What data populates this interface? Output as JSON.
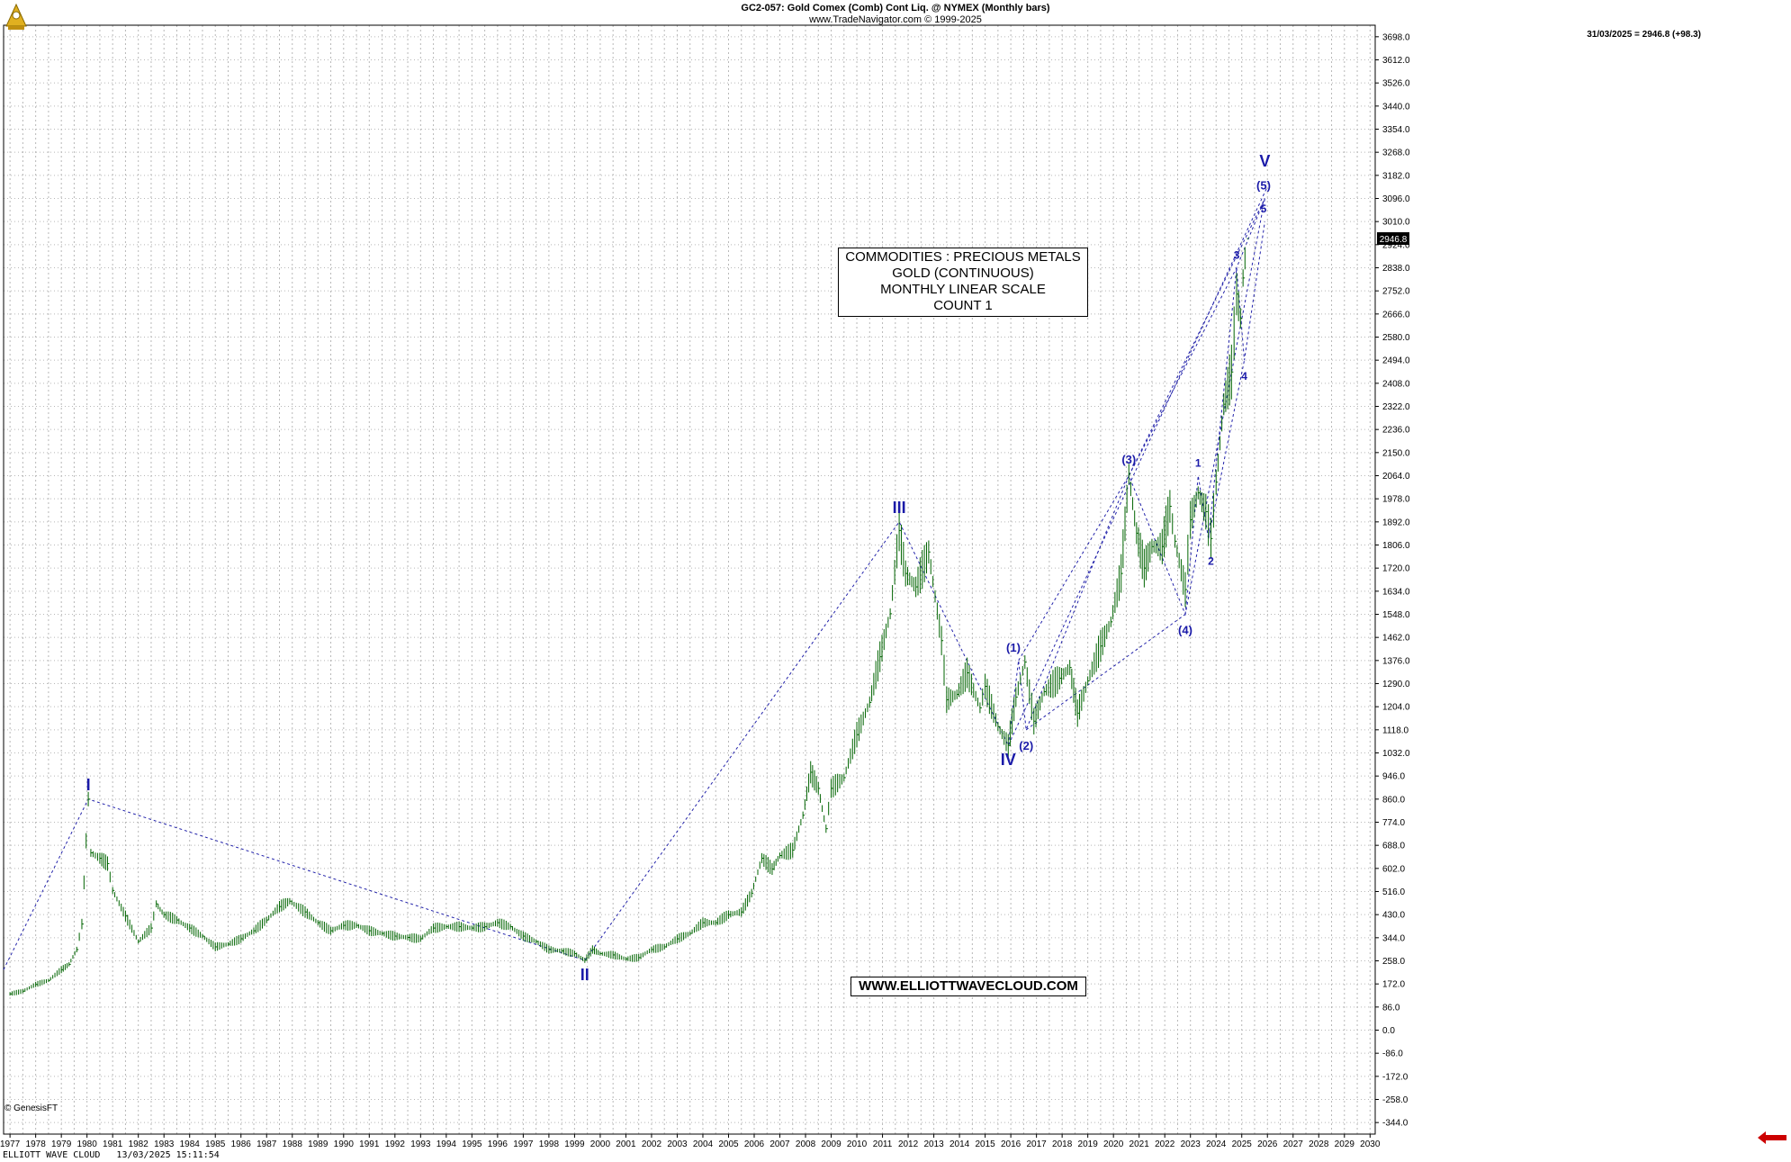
{
  "header": {
    "title": "GC2-057:  Gold Comex (Comb) Cont Liq. @ NYMEX  (Monthly bars)",
    "subtitle": "www.TradeNavigator.com © 1999-2025"
  },
  "last_readout": "31/03/2025 = 2946.8 (+98.3)",
  "price_badge": "2946.8",
  "info_box": {
    "line1": "COMMODITIES : PRECIOUS METALS",
    "line2": "GOLD (CONTINUOUS)",
    "line3": "MONTHLY LINEAR SCALE",
    "line4": "COUNT 1"
  },
  "website": "WWW.ELLIOTTWAVECLOUD.COM",
  "genesis_label": "© GenesisFT",
  "footer": "ELLIOTT WAVE CLOUD   13/03/2025 15:11:54",
  "colors": {
    "background": "#ffffff",
    "bars": "#006400",
    "wave_labels": "#1a1aa8",
    "trend_lines": "#2222aa",
    "grid": "#b8b8b8",
    "arrow": "#cc0000"
  },
  "chart_data": {
    "type": "line",
    "title": "GC2-057:  Gold Comex (Comb) Cont Liq. @ NYMEX  (Monthly bars)",
    "xlabel": "",
    "ylabel": "",
    "x_range": [
      1976.75,
      2030.2
    ],
    "ylim": [
      -387,
      3741
    ],
    "y_ticks": [
      3698.0,
      3612.0,
      3526.0,
      3440.0,
      3354.0,
      3268.0,
      3182.0,
      3096.0,
      3010.0,
      2924.0,
      2838.0,
      2752.0,
      2666.0,
      2580.0,
      2494.0,
      2408.0,
      2322.0,
      2236.0,
      2150.0,
      2064.0,
      1978.0,
      1892.0,
      1806.0,
      1720.0,
      1634.0,
      1548.0,
      1462.0,
      1376.0,
      1290.0,
      1204.0,
      1118.0,
      1032.0,
      946.0,
      860.0,
      774.0,
      688.0,
      602.0,
      516.0,
      430.0,
      344.0,
      258.0,
      172.0,
      86.0,
      0.0,
      -86.0,
      -172.0,
      -258.0,
      -344.0
    ],
    "x_ticks": [
      "1977",
      "1978",
      "1979",
      "1980",
      "1981",
      "1982",
      "1983",
      "1984",
      "1985",
      "1986",
      "1987",
      "1988",
      "1989",
      "1990",
      "1991",
      "1992",
      "1993",
      "1994",
      "1995",
      "1996",
      "1997",
      "1998",
      "1999",
      "2000",
      "2001",
      "2002",
      "2003",
      "2004",
      "2005",
      "2006",
      "2007",
      "2008",
      "2009",
      "2010",
      "2011",
      "2012",
      "2013",
      "2014",
      "2015",
      "2016",
      "2017",
      "2018",
      "2019",
      "2020",
      "2021",
      "2022",
      "2023",
      "2024",
      "2025",
      "2026",
      "2027",
      "2028",
      "2029",
      "2030"
    ],
    "grid": true,
    "series": [
      {
        "values_xy": [
          [
            1977.0,
            135
          ],
          [
            1977.5,
            145
          ],
          [
            1978.0,
            170
          ],
          [
            1978.5,
            185
          ],
          [
            1979.0,
            225
          ],
          [
            1979.3,
            245
          ],
          [
            1979.6,
            300
          ],
          [
            1979.8,
            395
          ],
          [
            1980.05,
            860
          ],
          [
            1980.15,
            660
          ],
          [
            1980.5,
            640
          ],
          [
            1980.8,
            620
          ],
          [
            1981.0,
            520
          ],
          [
            1981.5,
            425
          ],
          [
            1982.0,
            330
          ],
          [
            1982.5,
            380
          ],
          [
            1982.7,
            470
          ],
          [
            1983.0,
            430
          ],
          [
            1983.5,
            410
          ],
          [
            1984.0,
            380
          ],
          [
            1984.5,
            350
          ],
          [
            1985.0,
            310
          ],
          [
            1985.5,
            320
          ],
          [
            1986.0,
            340
          ],
          [
            1986.5,
            370
          ],
          [
            1987.0,
            410
          ],
          [
            1987.5,
            460
          ],
          [
            1987.9,
            480
          ],
          [
            1988.5,
            440
          ],
          [
            1989.0,
            400
          ],
          [
            1989.5,
            370
          ],
          [
            1990.0,
            390
          ],
          [
            1990.5,
            390
          ],
          [
            1991.0,
            370
          ],
          [
            1991.5,
            360
          ],
          [
            1992.0,
            350
          ],
          [
            1992.5,
            345
          ],
          [
            1993.0,
            340
          ],
          [
            1993.5,
            380
          ],
          [
            1994.0,
            385
          ],
          [
            1994.5,
            385
          ],
          [
            1995.0,
            380
          ],
          [
            1995.5,
            385
          ],
          [
            1996.0,
            400
          ],
          [
            1996.5,
            385
          ],
          [
            1997.0,
            350
          ],
          [
            1997.5,
            330
          ],
          [
            1998.0,
            300
          ],
          [
            1998.5,
            295
          ],
          [
            1999.0,
            285
          ],
          [
            1999.4,
            260
          ],
          [
            1999.7,
            300
          ],
          [
            2000.0,
            285
          ],
          [
            2000.5,
            280
          ],
          [
            2001.0,
            265
          ],
          [
            2001.5,
            270
          ],
          [
            2002.0,
            300
          ],
          [
            2002.5,
            310
          ],
          [
            2003.0,
            340
          ],
          [
            2003.5,
            360
          ],
          [
            2004.0,
            400
          ],
          [
            2004.5,
            400
          ],
          [
            2005.0,
            430
          ],
          [
            2005.5,
            440
          ],
          [
            2005.9,
            510
          ],
          [
            2006.3,
            640
          ],
          [
            2006.7,
            600
          ],
          [
            2007.0,
            650
          ],
          [
            2007.5,
            670
          ],
          [
            2007.9,
            800
          ],
          [
            2008.2,
            960
          ],
          [
            2008.5,
            900
          ],
          [
            2008.8,
            750
          ],
          [
            2009.0,
            900
          ],
          [
            2009.5,
            940
          ],
          [
            2010.0,
            1100
          ],
          [
            2010.5,
            1220
          ],
          [
            2010.9,
            1390
          ],
          [
            2011.3,
            1550
          ],
          [
            2011.65,
            1860
          ],
          [
            2011.9,
            1700
          ],
          [
            2012.3,
            1650
          ],
          [
            2012.8,
            1780
          ],
          [
            2013.3,
            1450
          ],
          [
            2013.5,
            1230
          ],
          [
            2013.9,
            1250
          ],
          [
            2014.3,
            1330
          ],
          [
            2014.8,
            1200
          ],
          [
            2015.0,
            1280
          ],
          [
            2015.5,
            1130
          ],
          [
            2015.9,
            1060
          ],
          [
            2016.2,
            1240
          ],
          [
            2016.55,
            1370
          ],
          [
            2016.9,
            1150
          ],
          [
            2017.3,
            1260
          ],
          [
            2017.9,
            1310
          ],
          [
            2018.3,
            1350
          ],
          [
            2018.6,
            1180
          ],
          [
            2019.0,
            1300
          ],
          [
            2019.5,
            1430
          ],
          [
            2019.9,
            1520
          ],
          [
            2020.3,
            1700
          ],
          [
            2020.6,
            2070
          ],
          [
            2020.9,
            1850
          ],
          [
            2021.2,
            1720
          ],
          [
            2021.5,
            1800
          ],
          [
            2021.9,
            1800
          ],
          [
            2022.2,
            1950
          ],
          [
            2022.4,
            1820
          ],
          [
            2022.8,
            1640
          ],
          [
            2023.0,
            1900
          ],
          [
            2023.3,
            2000
          ],
          [
            2023.6,
            1930
          ],
          [
            2023.8,
            1830
          ],
          [
            2024.0,
            2040
          ],
          [
            2024.3,
            2330
          ],
          [
            2024.6,
            2450
          ],
          [
            2024.8,
            2740
          ],
          [
            2024.95,
            2650
          ],
          [
            2025.05,
            2800
          ],
          [
            2025.2,
            2946.8
          ]
        ]
      }
    ],
    "wave_labels": [
      {
        "label": "I",
        "x": 1980.05,
        "y": 860
      },
      {
        "label": "II",
        "x": 1999.4,
        "y": 260
      },
      {
        "label": "III",
        "x": 2011.65,
        "y": 1892
      },
      {
        "label": "IV",
        "x": 2015.9,
        "y": 1060
      },
      {
        "label": "V",
        "x": 2025.9,
        "y": 3182
      },
      {
        "label": "(1)",
        "x": 2016.1,
        "y": 1376
      },
      {
        "label": "(2)",
        "x": 2016.6,
        "y": 1118
      },
      {
        "label": "(3)",
        "x": 2020.6,
        "y": 2075
      },
      {
        "label": "(4)",
        "x": 2022.8,
        "y": 1548
      },
      {
        "label": "(5)",
        "x": 2025.85,
        "y": 3096
      },
      {
        "label": "1",
        "x": 2023.3,
        "y": 2064
      },
      {
        "label": "2",
        "x": 2023.8,
        "y": 1806
      },
      {
        "label": "3",
        "x": 2024.8,
        "y": 2838
      },
      {
        "label": "4",
        "x": 2025.1,
        "y": 2494
      },
      {
        "label": "5",
        "x": 2025.85,
        "y": 3010
      }
    ],
    "trend_lines": [
      [
        [
          1976.75,
          225
        ],
        [
          1980.05,
          860
        ],
        [
          1999.4,
          260
        ],
        [
          2011.65,
          1892
        ],
        [
          2015.9,
          1060
        ],
        [
          2026.0,
          3140
        ]
      ],
      [
        [
          2015.9,
          1060
        ],
        [
          2016.3,
          1376
        ],
        [
          2016.6,
          1118
        ],
        [
          2020.6,
          2064
        ],
        [
          2022.8,
          1548
        ],
        [
          2025.9,
          3096
        ]
      ],
      [
        [
          2016.6,
          1118
        ],
        [
          2022.8,
          1548
        ]
      ],
      [
        [
          2016.3,
          1376
        ],
        [
          2020.6,
          2064
        ],
        [
          2025.9,
          3096
        ]
      ],
      [
        [
          2022.8,
          1548
        ],
        [
          2023.3,
          2064
        ],
        [
          2023.7,
          1830
        ],
        [
          2024.8,
          2838
        ],
        [
          2025.1,
          2494
        ],
        [
          2025.9,
          3010
        ]
      ],
      [
        [
          2023.7,
          1830
        ],
        [
          2025.1,
          2494
        ]
      ],
      [
        [
          2020.6,
          2064
        ],
        [
          2024.8,
          2838
        ],
        [
          2025.9,
          3096
        ]
      ]
    ]
  }
}
